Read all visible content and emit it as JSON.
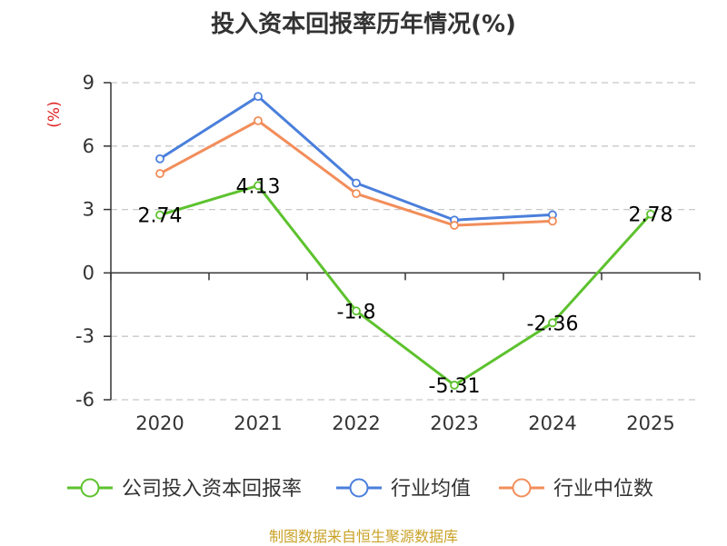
{
  "chart_data": {
    "type": "line",
    "title": "投入资本回报率历年情况(%)",
    "ylabel": "(%)",
    "xlabel": "",
    "categories": [
      "2020",
      "2021",
      "2022",
      "2023",
      "2024",
      "2025"
    ],
    "ylim": [
      -6,
      9
    ],
    "yticks": [
      -6,
      -3,
      0,
      3,
      6,
      9
    ],
    "grid": true,
    "legend_position": "bottom",
    "series": [
      {
        "name": "公司投入资本回报率",
        "color": "#5dc22e",
        "values": [
          2.74,
          4.13,
          -1.8,
          -5.31,
          -2.36,
          2.78
        ],
        "labels": [
          "2.74",
          "4.13",
          "-1.8",
          "-5.31",
          "-2.36",
          "2.78"
        ]
      },
      {
        "name": "行业均值",
        "color": "#4a7fdb",
        "values": [
          5.4,
          8.35,
          4.25,
          2.5,
          2.75,
          null
        ]
      },
      {
        "name": "行业中位数",
        "color": "#f28e5b",
        "values": [
          4.7,
          7.2,
          3.75,
          2.25,
          2.45,
          null
        ]
      }
    ]
  },
  "source": "制图数据来自恒生聚源数据库"
}
